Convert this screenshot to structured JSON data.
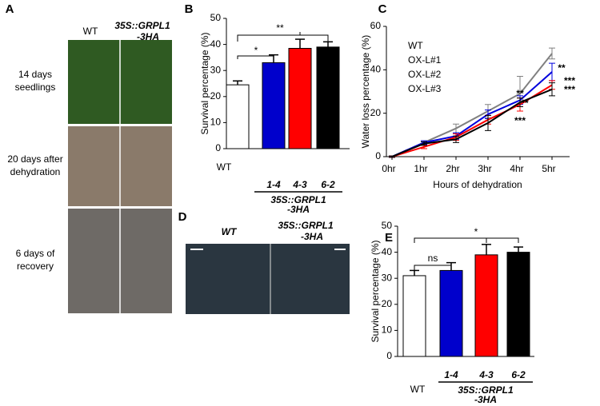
{
  "chart_data": [
    {
      "type": "bar",
      "panel": "B",
      "ylabel": "Survival percentage (%)",
      "categories": [
        "WT",
        "1-4",
        "4-3",
        "6-2"
      ],
      "values": [
        24.5,
        33,
        38.5,
        39
      ],
      "errors": [
        1.5,
        3,
        3.5,
        2
      ],
      "colors": [
        "#ffffff",
        "#0000cc",
        "#ff0000",
        "#000000"
      ],
      "ylim": [
        0,
        50
      ],
      "yticks": [
        0,
        10,
        20,
        30,
        40,
        50
      ],
      "group_label": [
        "35S::GRPL1",
        "-3HA"
      ],
      "annotations": [
        "*",
        "**"
      ]
    },
    {
      "type": "line",
      "panel": "C",
      "xlabel": "Hours of dehydration",
      "ylabel": "Water loss percentage (%)",
      "categories": [
        "0hr",
        "1hr",
        "2hr",
        "3hr",
        "4hr",
        "5hr"
      ],
      "series": [
        {
          "name": "WT",
          "color": "#808080",
          "values": [
            0,
            6.5,
            13,
            21,
            29,
            47.5
          ],
          "errors": [
            0.3,
            0.8,
            2,
            3,
            8,
            2.5
          ]
        },
        {
          "name": "OX-L#1",
          "color": "#0000dd",
          "values": [
            0,
            6.5,
            9.5,
            19.5,
            26,
            39
          ],
          "errors": [
            0.3,
            0.8,
            1.5,
            2,
            2,
            4
          ]
        },
        {
          "name": "OX-L#2",
          "color": "#ff0000",
          "values": [
            0,
            4.5,
            9,
            17,
            24,
            33
          ],
          "errors": [
            0.3,
            0.8,
            1.5,
            2,
            3,
            2
          ]
        },
        {
          "name": "OX-L#3",
          "color": "#000000",
          "values": [
            0,
            6,
            8,
            15.5,
            25,
            31
          ],
          "errors": [
            0.3,
            0.8,
            1.5,
            3.5,
            2,
            3
          ]
        }
      ],
      "ylim": [
        0,
        60
      ],
      "yticks": [
        0,
        20,
        40,
        60
      ],
      "annotations": [
        {
          "text": "**",
          "color": "#0000dd"
        },
        {
          "text": "**",
          "color": "#000000"
        },
        {
          "text": "***",
          "color": "#ff0000"
        },
        {
          "text": "**",
          "color": "#0000dd"
        },
        {
          "text": "***",
          "color": "#ff0000"
        },
        {
          "text": "***",
          "color": "#000000"
        }
      ]
    },
    {
      "type": "bar",
      "panel": "E",
      "ylabel": "Survival percentage (%)",
      "categories": [
        "WT",
        "1-4",
        "4-3",
        "6-2"
      ],
      "values": [
        31,
        33,
        39,
        40
      ],
      "errors": [
        2,
        3,
        4,
        2
      ],
      "colors": [
        "#ffffff",
        "#0000cc",
        "#ff0000",
        "#000000"
      ],
      "ylim": [
        0,
        50
      ],
      "yticks": [
        0,
        10,
        20,
        30,
        40,
        50
      ],
      "group_label": [
        "35S::GRPL1",
        "-3HA"
      ],
      "annotations": [
        "ns",
        "*"
      ]
    }
  ],
  "panel_a": {
    "panel": "A",
    "columns": [
      "WT",
      [
        "35S::GRPL1",
        "-3HA"
      ]
    ],
    "rows": [
      [
        "14 days",
        "seedlings"
      ],
      [
        "20 days after",
        "dehydration"
      ],
      [
        "6 days of",
        "recovery"
      ]
    ]
  },
  "panel_d": {
    "panel": "D",
    "columns": [
      "WT",
      [
        "35S::GRPL1",
        "-3HA"
      ]
    ]
  }
}
